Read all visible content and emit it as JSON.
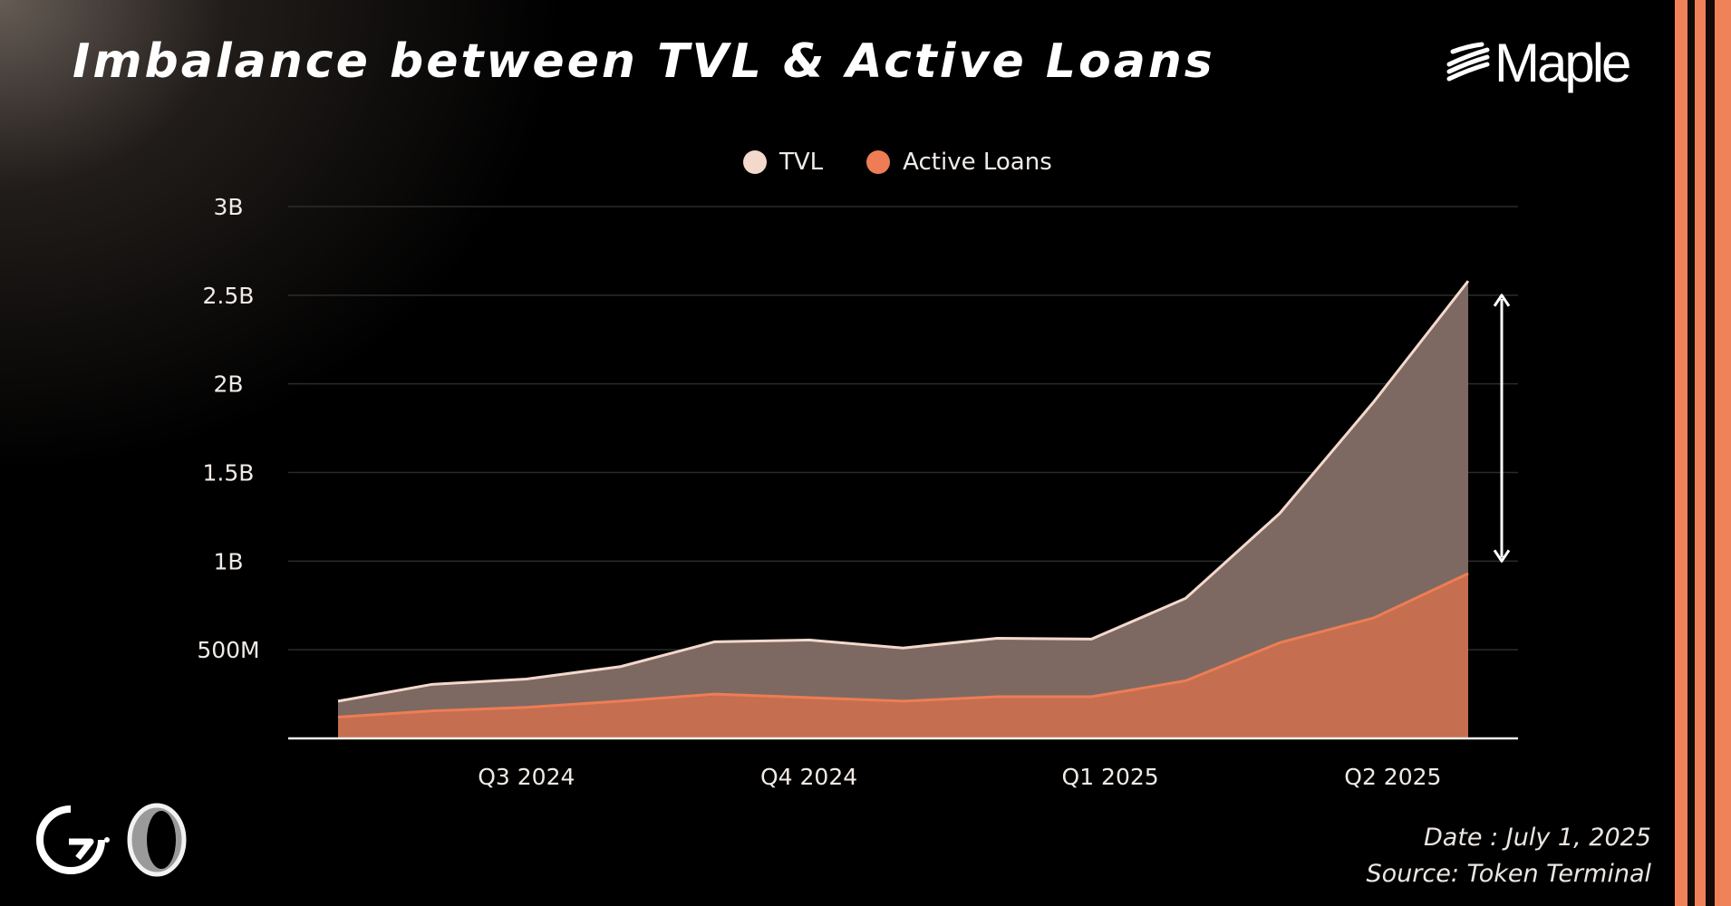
{
  "header": {
    "title": "Imbalance between TVL & Active Loans",
    "brand": "Maple"
  },
  "footer": {
    "date": "Date : July 1, 2025",
    "source": "Source: Token Terminal"
  },
  "colors": {
    "tvl_line": "#f3d8cc",
    "tvl_fill": "#7d6961",
    "loans_line": "#ee7d55",
    "loans_fill": "#c56e50",
    "grid": "#2b2b2b",
    "stripe_accent": "#f0825a",
    "background": "#000000"
  },
  "icons": {
    "brand_mark": "maple-stripes-icon",
    "partner_1": "g-swirl-logo-icon",
    "partner_2": "ring-logo-icon"
  },
  "chart_data": {
    "type": "area",
    "legend": [
      "TVL",
      "Active Loans"
    ],
    "legend_position": "top-center",
    "grid": true,
    "y_ticks": [
      "500M",
      "1B",
      "1.5B",
      "2B",
      "2.5B",
      "3B"
    ],
    "y_tick_values": [
      500,
      1000,
      1500,
      2000,
      2500,
      3000
    ],
    "ylim": [
      0,
      3000
    ],
    "y_unit": "millions",
    "x_ticks": [
      "Q3 2024",
      "Q4 2024",
      "Q1 2025",
      "Q2 2025"
    ],
    "x_tick_positions": [
      2,
      5,
      8.2,
      11.2
    ],
    "x": [
      0,
      1,
      2,
      3,
      4,
      5,
      6,
      7,
      8,
      9,
      10,
      11,
      12
    ],
    "series": [
      {
        "name": "TVL",
        "values": [
          210,
          305,
          335,
          405,
          545,
          555,
          510,
          565,
          560,
          790,
          1270,
          1900,
          2580
        ]
      },
      {
        "name": "Active Loans",
        "values": [
          120,
          155,
          175,
          210,
          250,
          230,
          210,
          235,
          235,
          325,
          540,
          680,
          930
        ]
      }
    ],
    "annotation": {
      "type": "double-arrow",
      "from": 1000,
      "to": 2500,
      "meaning": "gap between TVL and Active Loans"
    }
  }
}
